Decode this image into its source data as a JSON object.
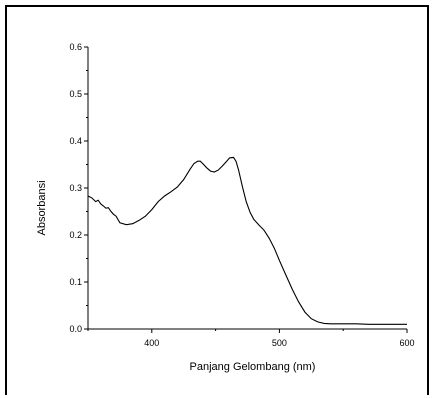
{
  "chart_data": {
    "type": "line",
    "title": "",
    "xlabel": "Panjang Gelombang (nm)",
    "ylabel": "Absorbansi",
    "xlim": [
      350,
      600
    ],
    "ylim": [
      0.0,
      0.6
    ],
    "x_ticks": [
      400,
      500,
      600
    ],
    "x_tick_labels": [
      "400",
      "500",
      "600"
    ],
    "y_ticks": [
      0.0,
      0.1,
      0.2,
      0.3,
      0.4,
      0.5,
      0.6
    ],
    "y_tick_labels": [
      "0.0",
      "0.1",
      "0.2",
      "0.3",
      "0.4",
      "0.5",
      "0.6"
    ],
    "grid": false,
    "legend": "none",
    "line_color": "#000000",
    "series": [
      {
        "x": [
          350,
          353,
          356,
          358,
          360,
          362,
          364,
          366,
          368,
          370,
          372,
          375,
          380,
          385,
          390,
          395,
          400,
          405,
          410,
          415,
          420,
          425,
          430,
          433,
          436,
          438,
          440,
          443,
          446,
          449,
          452,
          455,
          458,
          461,
          464,
          466,
          468,
          471,
          474,
          477,
          480,
          484,
          488,
          492,
          496,
          500,
          505,
          510,
          515,
          520,
          525,
          530,
          535,
          540,
          545,
          550,
          560,
          570,
          580,
          590,
          600
        ],
        "y": [
          0.283,
          0.279,
          0.271,
          0.274,
          0.266,
          0.262,
          0.257,
          0.258,
          0.25,
          0.244,
          0.24,
          0.226,
          0.222,
          0.224,
          0.231,
          0.24,
          0.254,
          0.271,
          0.283,
          0.292,
          0.302,
          0.318,
          0.34,
          0.352,
          0.357,
          0.357,
          0.352,
          0.343,
          0.336,
          0.334,
          0.338,
          0.346,
          0.355,
          0.364,
          0.365,
          0.357,
          0.338,
          0.303,
          0.271,
          0.248,
          0.233,
          0.221,
          0.21,
          0.193,
          0.172,
          0.146,
          0.115,
          0.085,
          0.058,
          0.036,
          0.022,
          0.015,
          0.012,
          0.011,
          0.011,
          0.011,
          0.011,
          0.01,
          0.01,
          0.01,
          0.01
        ]
      }
    ]
  }
}
